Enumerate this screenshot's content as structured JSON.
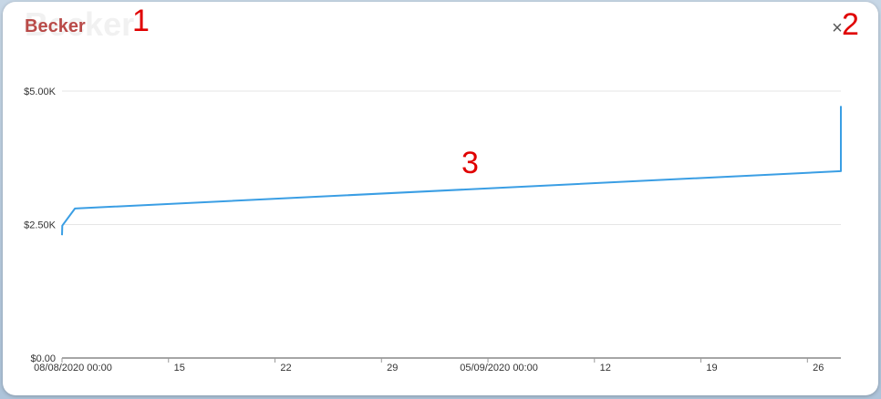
{
  "modal": {
    "title": "Becker",
    "close_icon": "×",
    "accent_color": "#b94a48"
  },
  "annotations": {
    "m1": "1",
    "m2": "2",
    "m3": "3"
  },
  "chart_data": {
    "type": "line",
    "title": "",
    "xlabel": "",
    "ylabel": "",
    "ylim": [
      0,
      5000
    ],
    "yticks": [
      {
        "value": 0,
        "label": "$0.00"
      },
      {
        "value": 2500,
        "label": "$2.50K"
      },
      {
        "value": 5000,
        "label": "$5.00K"
      }
    ],
    "xlim": [
      0,
      51.2
    ],
    "xticks": [
      {
        "value": 0,
        "label": "08/08/2020 00:00"
      },
      {
        "value": 7,
        "label": "15"
      },
      {
        "value": 14,
        "label": "22"
      },
      {
        "value": 21,
        "label": "29"
      },
      {
        "value": 28,
        "label": "05/09/2020 00:00"
      },
      {
        "value": 35,
        "label": "12"
      },
      {
        "value": 42,
        "label": "19"
      },
      {
        "value": 49,
        "label": "26"
      }
    ],
    "grid": true,
    "line_color": "#3a9ee4",
    "series": [
      {
        "points": [
          [
            0,
            2300
          ],
          [
            0.02,
            2480
          ],
          [
            0.85,
            2800
          ],
          [
            51.2,
            3500
          ],
          [
            51.2,
            4720
          ]
        ]
      }
    ]
  }
}
